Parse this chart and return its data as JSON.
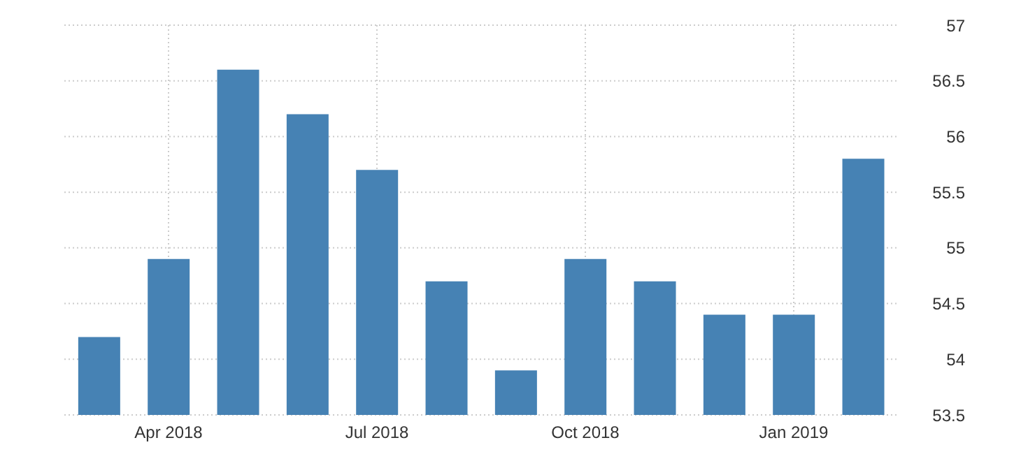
{
  "chart_data": {
    "type": "bar",
    "categories": [
      null,
      "Apr 2018",
      null,
      null,
      "Jul 2018",
      null,
      null,
      "Oct 2018",
      null,
      null,
      "Jan 2019",
      null
    ],
    "values": [
      54.2,
      54.9,
      56.6,
      56.2,
      55.7,
      54.7,
      53.9,
      54.9,
      54.7,
      54.4,
      54.4,
      55.8
    ],
    "color": "#4682b4",
    "ylim": [
      53.5,
      57
    ],
    "yticks": [
      53.5,
      54,
      54.5,
      55,
      55.5,
      56,
      56.5,
      57
    ],
    "grid": true
  }
}
